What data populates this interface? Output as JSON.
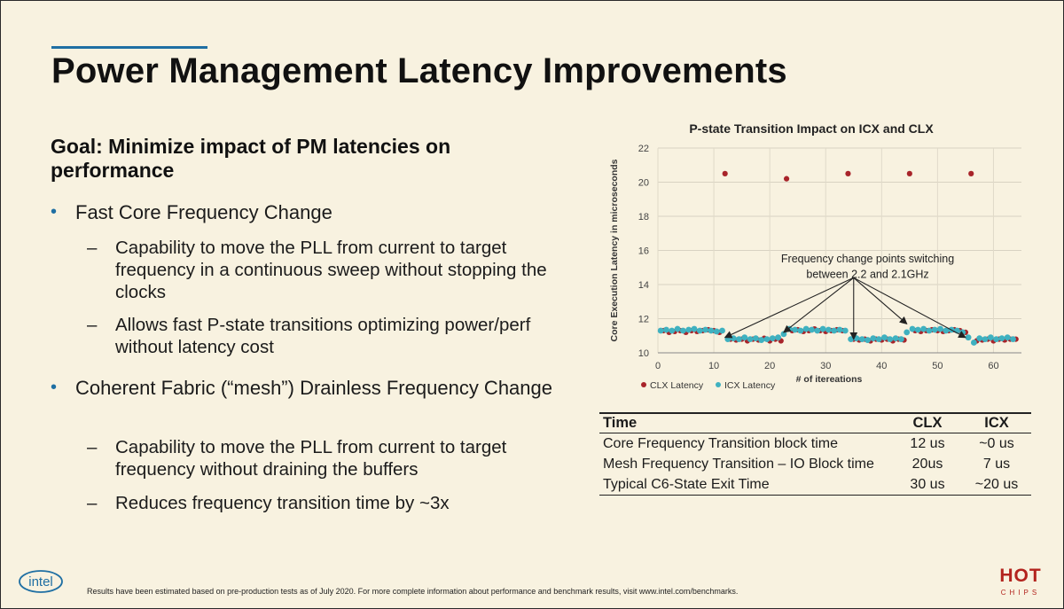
{
  "slide": {
    "title": "Power Management Latency Improvements",
    "goal": "Goal:  Minimize impact of PM latencies on performance",
    "bullets": [
      {
        "text": "Fast Core Frequency Change",
        "subs": [
          "Capability to move the PLL from current to target frequency in a continuous sweep without stopping the clocks",
          "Allows fast P-state transitions optimizing power/perf without latency cost"
        ]
      },
      {
        "text": "Coherent Fabric (“mesh”) Drainless Frequency Change",
        "subs": [
          "Capability to move the PLL from current to target frequency without draining the buffers",
          "Reduces frequency transition time by ~3x"
        ]
      }
    ],
    "footnote": "Results have been estimated based on pre-production tests as of July 2020. For more complete information about performance and benchmark results, visit www.intel.com/benchmarks.",
    "logo_text": "intel",
    "hotchips": {
      "hot": "HOT",
      "chips": "CHIPS"
    }
  },
  "table": {
    "headers": [
      "Time",
      "CLX",
      "ICX"
    ],
    "rows": [
      [
        "Core Frequency Transition block time",
        "12 us",
        "~0 us"
      ],
      [
        "Mesh Frequency Transition – IO Block time",
        "20us",
        "7 us"
      ],
      [
        "Typical C6-State Exit Time",
        "30 us",
        "~20 us"
      ]
    ]
  },
  "colors": {
    "accent": "#1f6fa3",
    "clx": "#a8242a",
    "icx": "#3fb1c0",
    "background": "#f8f2e0"
  },
  "chart_data": {
    "type": "scatter",
    "title": "P-state Transition Impact on ICX and CLX",
    "xlabel": "# of itereations",
    "ylabel": "Core Execution Latency in microseconds",
    "xlim": [
      0,
      65
    ],
    "ylim": [
      10,
      22
    ],
    "xticks": [
      0,
      10,
      20,
      30,
      40,
      50,
      60
    ],
    "yticks": [
      10,
      12,
      14,
      16,
      18,
      20,
      22
    ],
    "grid": true,
    "legend_position": "bottom-left",
    "annotation": "Frequency change points switching between 2.2 and 2.1GHz",
    "annotation_targets": [
      [
        12,
        10.9
      ],
      [
        22.5,
        11.2
      ],
      [
        35,
        10.8
      ],
      [
        44.5,
        11.7
      ],
      [
        55,
        10.9
      ]
    ],
    "series": [
      {
        "name": "CLX Latency",
        "color": "#a8242a",
        "x": [
          1,
          2,
          3,
          4,
          5,
          6,
          7,
          8,
          9,
          10,
          11,
          12,
          13,
          14,
          15,
          16,
          17,
          18,
          19,
          20,
          21,
          22,
          23,
          24,
          25,
          26,
          27,
          28,
          29,
          30,
          31,
          32,
          33,
          34,
          35,
          36,
          37,
          38,
          39,
          40,
          41,
          42,
          43,
          44,
          45,
          46,
          47,
          48,
          49,
          50,
          51,
          52,
          53,
          54,
          55,
          56,
          57,
          58,
          59,
          60,
          61,
          62,
          63,
          64
        ],
        "y": [
          11.3,
          11.2,
          11.25,
          11.3,
          11.2,
          11.3,
          11.25,
          11.3,
          11.35,
          11.3,
          11.2,
          20.5,
          10.8,
          10.75,
          10.8,
          10.7,
          10.8,
          10.75,
          10.85,
          10.7,
          10.8,
          10.7,
          20.2,
          11.3,
          11.35,
          11.25,
          11.3,
          11.4,
          11.3,
          11.25,
          11.3,
          11.35,
          11.3,
          20.5,
          10.8,
          10.75,
          10.8,
          10.7,
          10.8,
          10.75,
          10.8,
          10.7,
          10.8,
          10.75,
          20.5,
          11.3,
          11.25,
          11.3,
          11.35,
          11.3,
          11.25,
          11.3,
          11.35,
          11.3,
          11.2,
          20.5,
          10.7,
          10.75,
          10.8,
          10.7,
          10.8,
          10.75,
          10.8,
          10.8
        ]
      },
      {
        "name": "ICX Latency",
        "color": "#3fb1c0",
        "x": [
          0.5,
          1.5,
          2.5,
          3.5,
          4.5,
          5.5,
          6.5,
          7.5,
          8.5,
          9.5,
          10.5,
          11.5,
          12.5,
          13.5,
          14.5,
          15.5,
          16.5,
          17.5,
          18.5,
          19.5,
          20.5,
          21.5,
          22.5,
          23.5,
          24.5,
          25.5,
          26.5,
          27.5,
          28.5,
          29.5,
          30.5,
          31.5,
          32.5,
          33.5,
          34.5,
          35.5,
          36.5,
          37.5,
          38.5,
          39.5,
          40.5,
          41.5,
          42.5,
          43.5,
          44.5,
          45.5,
          46.5,
          47.5,
          48.5,
          49.5,
          50.5,
          51.5,
          52.5,
          53.5,
          54.5,
          55.5,
          56.5,
          57.5,
          58.5,
          59.5,
          60.5,
          61.5,
          62.5,
          63.5
        ],
        "y": [
          11.3,
          11.35,
          11.3,
          11.4,
          11.3,
          11.35,
          11.4,
          11.3,
          11.35,
          11.3,
          11.25,
          11.3,
          10.8,
          10.85,
          10.8,
          10.9,
          10.8,
          10.85,
          10.75,
          10.8,
          10.85,
          10.9,
          11.1,
          11.4,
          11.35,
          11.3,
          11.4,
          11.35,
          11.3,
          11.4,
          11.35,
          11.3,
          11.35,
          11.3,
          10.8,
          10.85,
          10.8,
          10.75,
          10.85,
          10.8,
          10.9,
          10.8,
          10.85,
          10.8,
          11.2,
          11.4,
          11.35,
          11.4,
          11.3,
          11.35,
          11.4,
          11.3,
          11.35,
          11.3,
          11.2,
          10.9,
          10.6,
          10.85,
          10.8,
          10.9,
          10.8,
          10.85,
          10.9,
          10.8
        ]
      }
    ]
  }
}
